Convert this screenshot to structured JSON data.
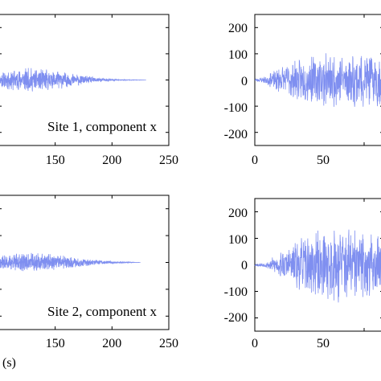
{
  "chart_data": [
    {
      "type": "line",
      "panel": "top-left",
      "annotation": "Site 1, component x",
      "xlabel": "",
      "ylabel": "",
      "xlim": [
        100,
        250
      ],
      "ylim": [
        -250,
        250
      ],
      "xticks": [
        150,
        200,
        250
      ],
      "yticks": [],
      "series": [
        {
          "color": "#7f8ff0",
          "x": [
            100,
            110,
            120,
            130,
            140,
            150,
            160,
            170,
            180,
            190,
            200,
            210,
            220,
            230
          ],
          "amplitude": [
            30,
            40,
            45,
            48,
            42,
            38,
            30,
            22,
            14,
            8,
            4,
            2,
            1,
            0
          ]
        }
      ]
    },
    {
      "type": "line",
      "panel": "top-right",
      "annotation": "",
      "xlabel": "",
      "ylabel": "",
      "xlim": [
        0,
        100
      ],
      "ylim": [
        -250,
        250
      ],
      "xticks": [
        0,
        50
      ],
      "yticks": [
        200,
        100,
        0,
        -100,
        -200
      ],
      "series": [
        {
          "color": "#7f8ff0",
          "x": [
            0,
            5,
            10,
            20,
            30,
            40,
            50,
            60,
            70,
            80,
            90,
            100
          ],
          "amplitude": [
            5,
            15,
            50,
            80,
            100,
            110,
            105,
            110,
            115,
            120,
            110,
            100
          ]
        }
      ]
    },
    {
      "type": "line",
      "panel": "bottom-left",
      "annotation": "Site 2, component x",
      "xlabel": "(s)",
      "ylabel": "",
      "xlim": [
        100,
        250
      ],
      "ylim": [
        -250,
        250
      ],
      "xticks": [
        150,
        200,
        250
      ],
      "yticks": [],
      "series": [
        {
          "color": "#7f8ff0",
          "x": [
            100,
            110,
            120,
            130,
            140,
            150,
            160,
            170,
            180,
            190,
            200,
            210,
            220,
            225
          ],
          "amplitude": [
            25,
            30,
            35,
            38,
            34,
            30,
            25,
            18,
            12,
            8,
            5,
            3,
            1,
            0
          ]
        }
      ]
    },
    {
      "type": "line",
      "panel": "bottom-right",
      "annotation": "",
      "xlabel": "",
      "ylabel": "",
      "xlim": [
        0,
        100
      ],
      "ylim": [
        -250,
        250
      ],
      "xticks": [
        0,
        50
      ],
      "yticks": [
        200,
        100,
        0,
        -100,
        -200
      ],
      "series": [
        {
          "color": "#7f8ff0",
          "x": [
            0,
            5,
            10,
            20,
            30,
            40,
            50,
            60,
            70,
            80,
            90,
            100
          ],
          "amplitude": [
            5,
            10,
            40,
            100,
            140,
            150,
            130,
            140,
            150,
            130,
            120,
            110
          ]
        }
      ]
    }
  ]
}
